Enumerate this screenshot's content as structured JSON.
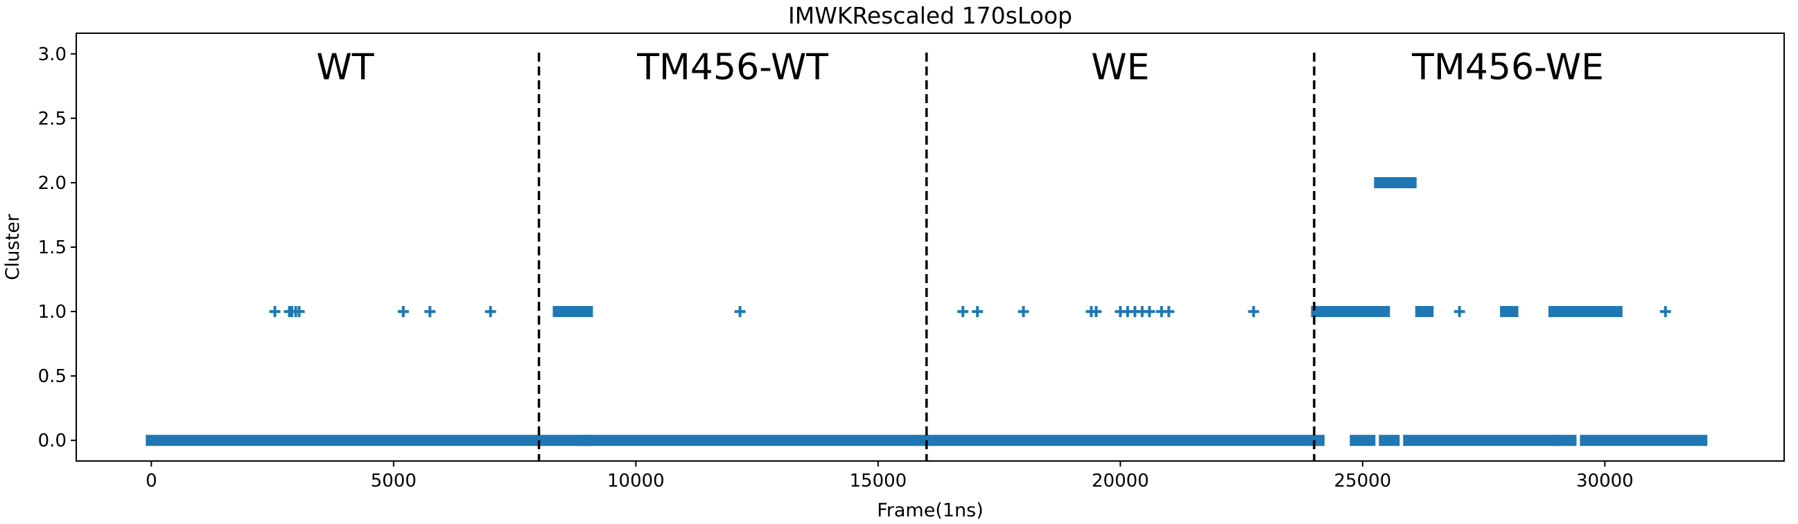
{
  "chart_data": {
    "type": "scatter",
    "title": "IMWKRescaled 170sLoop",
    "xlabel": "Frame(1ns)",
    "ylabel": "Cluster",
    "xlim": [
      -1550,
      33700
    ],
    "ylim": [
      -0.16,
      3.16
    ],
    "xticks": [
      0,
      5000,
      10000,
      15000,
      20000,
      25000,
      30000
    ],
    "xtick_labels": [
      "0",
      "5000",
      "10000",
      "15000",
      "20000",
      "25000",
      "30000"
    ],
    "yticks": [
      0.0,
      0.5,
      1.0,
      1.5,
      2.0,
      2.5,
      3.0
    ],
    "ytick_labels": [
      "0.0",
      "0.5",
      "1.0",
      "1.5",
      "2.0",
      "2.5",
      "3.0"
    ],
    "grid": false,
    "marker": "+",
    "color": "#1f77b4",
    "separators": [
      8000,
      16000,
      24000
    ],
    "separator_color": "#000000",
    "regions": [
      {
        "label": "WT",
        "x": 4000,
        "y": 2.9
      },
      {
        "label": "TM456-WT",
        "x": 12000,
        "y": 2.9
      },
      {
        "label": "WE",
        "x": 20000,
        "y": 2.9
      },
      {
        "label": "TM456-WE",
        "x": 28000,
        "y": 2.9
      }
    ],
    "series": [
      {
        "cluster": 0,
        "ranges": [
          [
            0,
            8700
          ],
          [
            8900,
            8950
          ],
          [
            9050,
            24100
          ],
          [
            24850,
            25150
          ],
          [
            25450,
            25650
          ],
          [
            25950,
            28950
          ],
          [
            29050,
            29300
          ],
          [
            29600,
            32000
          ]
        ],
        "points": [
          8880,
          9030
        ]
      },
      {
        "cluster": 1,
        "ranges": [
          [
            8400,
            9000
          ],
          [
            24050,
            25450
          ],
          [
            26200,
            26350
          ],
          [
            27950,
            28100
          ],
          [
            28950,
            30250
          ]
        ],
        "points": [
          2550,
          2850,
          2900,
          2980,
          3050,
          5200,
          5750,
          7000,
          12150,
          16750,
          17050,
          18000,
          19400,
          19500,
          20000,
          20150,
          20300,
          20450,
          20600,
          20850,
          21000,
          22750,
          27000,
          31250
        ]
      },
      {
        "cluster": 2,
        "ranges": [
          [
            25350,
            26000
          ]
        ],
        "points": []
      }
    ]
  }
}
